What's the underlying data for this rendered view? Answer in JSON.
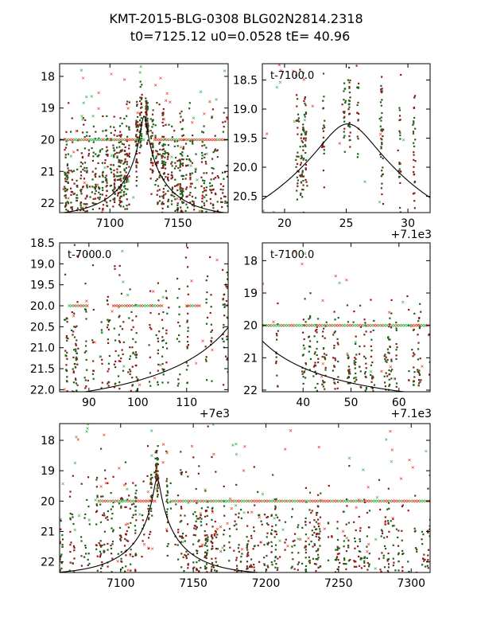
{
  "figure": {
    "title_line1": "KMT-2015-BLG-0308 BLG02N2814.2318",
    "title_line2": "t0=7125.12 u0=0.0528 tE=  40.96"
  },
  "colors": {
    "dark_green": "#1f5f17",
    "dark_red": "#8b1a1a",
    "red_x": "#e8402a",
    "green_x": "#3cb34a",
    "model_line": "#000000"
  },
  "model": {
    "t0": 7125.12,
    "u0": 0.0528,
    "tE": 40.96,
    "baseline_mag": 22.45
  },
  "chart_data": [
    {
      "id": "p1",
      "type": "scatter",
      "title": "",
      "inner_label": "",
      "offset_text": "",
      "xlim": [
        7063,
        7187
      ],
      "ylim": [
        22.3,
        17.6
      ],
      "xticks": [
        7100,
        7150
      ],
      "xtick_labels": [
        "7100",
        "7150"
      ],
      "yticks": [
        18,
        19,
        20,
        21,
        22
      ],
      "ytick_labels": [
        "18",
        "19",
        "20",
        "21",
        "22"
      ],
      "baseline_band": {
        "y": 20.0,
        "x_ranges": [
          [
            7063,
            7125
          ],
          [
            7133,
            7187
          ]
        ]
      },
      "data_seed": 11
    },
    {
      "id": "p2",
      "type": "scatter",
      "title": "",
      "inner_label": "t-7100.0",
      "offset_text": "+7.1e3",
      "xlim": [
        7118.2,
        7131.8
      ],
      "ylim": [
        20.78,
        18.22
      ],
      "xticks": [
        7120,
        7125,
        7130
      ],
      "xtick_labels": [
        "20",
        "25",
        "30"
      ],
      "yticks": [
        18.5,
        19.0,
        19.5,
        20.0,
        20.5
      ],
      "ytick_labels": [
        "18.5",
        "19.0",
        "19.5",
        "20.0",
        "20.5"
      ],
      "baseline_band": null,
      "data_seed": 23
    },
    {
      "id": "p3",
      "type": "scatter",
      "title": "",
      "inner_label": "t-7000.0",
      "offset_text": "+7e3",
      "xlim": [
        7084,
        7118.5
      ],
      "ylim": [
        22.05,
        18.5
      ],
      "xticks": [
        7090,
        7100,
        7110
      ],
      "xtick_labels": [
        "90",
        "100",
        "110"
      ],
      "yticks": [
        18.5,
        19.0,
        19.5,
        20.0,
        20.5,
        21.0,
        21.5,
        22.0
      ],
      "ytick_labels": [
        "18.5",
        "19.0",
        "19.5",
        "20.0",
        "20.5",
        "21.0",
        "21.5",
        "22.0"
      ],
      "baseline_band": {
        "y": 20.0,
        "x_ranges": [
          [
            7086,
            7090
          ],
          [
            7095,
            7105
          ],
          [
            7110,
            7113
          ]
        ]
      },
      "data_seed": 37
    },
    {
      "id": "p4",
      "type": "scatter",
      "title": "",
      "inner_label": "t-7100.0",
      "offset_text": "+7.1e3",
      "xlim": [
        7131.5,
        7166.5
      ],
      "ylim": [
        22.05,
        17.45
      ],
      "xticks": [
        7140,
        7150,
        7160
      ],
      "xtick_labels": [
        "40",
        "50",
        "60"
      ],
      "yticks": [
        18,
        19,
        20,
        21,
        22
      ],
      "ytick_labels": [
        "18",
        "19",
        "20",
        "21",
        "22"
      ],
      "baseline_band": {
        "y": 20.0,
        "x_ranges": [
          [
            7131.5,
            7166.5
          ]
        ]
      },
      "data_seed": 51
    },
    {
      "id": "p5",
      "type": "scatter",
      "title": "",
      "inner_label": "",
      "offset_text": "",
      "xlim": [
        7058,
        7313
      ],
      "ylim": [
        22.35,
        17.45
      ],
      "xticks": [
        7100,
        7150,
        7200,
        7250,
        7300
      ],
      "xtick_labels": [
        "7100",
        "7150",
        "7200",
        "7250",
        "7300"
      ],
      "yticks": [
        18,
        19,
        20,
        21,
        22
      ],
      "ytick_labels": [
        "18",
        "19",
        "20",
        "21",
        "22"
      ],
      "baseline_band": {
        "y": 20.0,
        "x_ranges": [
          [
            7085,
            7125
          ],
          [
            7135,
            7313
          ]
        ]
      },
      "data_seed": 73
    }
  ]
}
